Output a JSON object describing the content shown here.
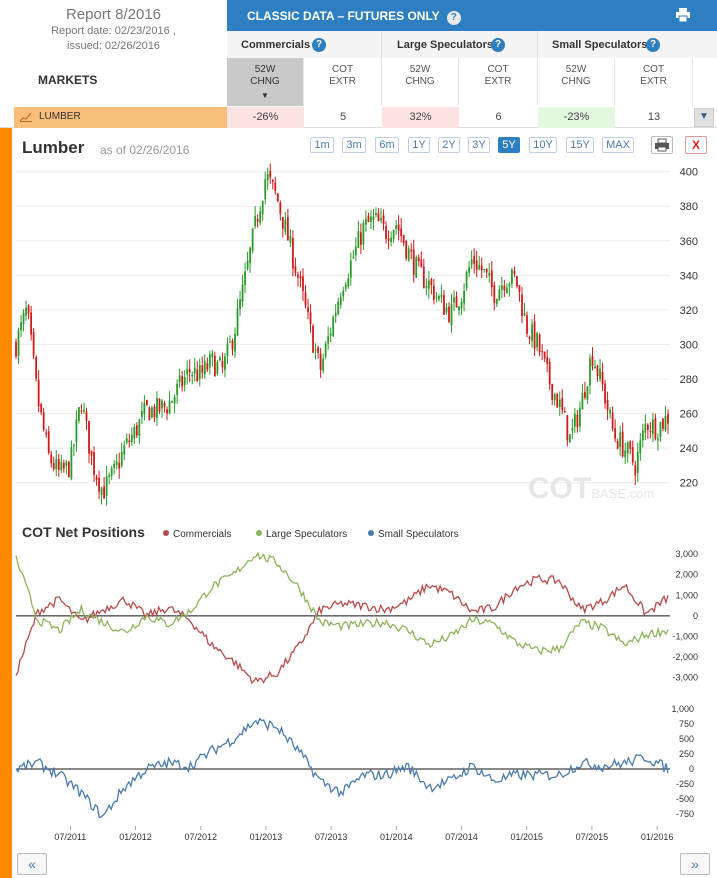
{
  "report": {
    "title": "Report 8/2016",
    "date_line": "Report date: 02/23/2016 ,",
    "issued_line": "issued: 02/26/2016",
    "markets_label": "MARKETS"
  },
  "header": {
    "title": "CLASSIC DATA – FUTURES ONLY",
    "help": "?",
    "groups": [
      {
        "label": "Commercials"
      },
      {
        "label": "Large Speculators"
      },
      {
        "label": "Small Speculators"
      }
    ],
    "subheads": [
      {
        "l1": "52W",
        "l2": "CHNG",
        "arrow": "▼"
      },
      {
        "l1": "COT",
        "l2": "EXTR"
      },
      {
        "l1": "52W",
        "l2": "CHNG"
      },
      {
        "l1": "COT",
        "l2": "EXTR"
      },
      {
        "l1": "52W",
        "l2": "CHNG"
      },
      {
        "l1": "COT",
        "l2": "EXTR"
      }
    ]
  },
  "row": {
    "market": "LUMBER",
    "cells": [
      "-26%",
      "5",
      "32%",
      "6",
      "-23%",
      "13"
    ],
    "cell_colors": [
      "#fde2e2",
      "#ffffff",
      "#fde2e2",
      "#ffffff",
      "#e4f7df",
      "#ffffff"
    ],
    "dropdown": "▼"
  },
  "chart": {
    "title": "Lumber",
    "asof": "as of 02/26/2016",
    "ranges": [
      "1m",
      "3m",
      "6m",
      "1Y",
      "2Y",
      "3Y",
      "5Y",
      "10Y",
      "15Y",
      "MAX"
    ],
    "active_range": "5Y",
    "close_label": "X",
    "watermark": "COTBASE.com"
  },
  "positions": {
    "title": "COT Net Positions",
    "legend": [
      {
        "name": "Commercials",
        "color": "#b94a4a"
      },
      {
        "name": "Large Speculators",
        "color": "#8db35c"
      },
      {
        "name": "Small Speculators",
        "color": "#4a7ab0"
      }
    ]
  },
  "nav": {
    "prev": "«",
    "next": "»"
  },
  "colors": {
    "accent": "#2e7fc1",
    "orange": "#ff8a00",
    "up": "#2a9a2a",
    "down": "#d11a1a"
  },
  "chart_data": [
    {
      "type": "candlestick",
      "title": "Lumber",
      "ylim": [
        210,
        405
      ],
      "yticks": [
        220,
        240,
        260,
        280,
        300,
        320,
        340,
        360,
        380,
        400
      ],
      "x_labels": [
        "07/2011",
        "01/2012",
        "07/2012",
        "01/2013",
        "07/2013",
        "01/2014",
        "07/2014",
        "01/2015",
        "07/2015",
        "01/2016"
      ],
      "x_range": [
        "2011-02",
        "2016-02"
      ],
      "price_path": [
        [
          "2011-02",
          300
        ],
        [
          "2011-03",
          320
        ],
        [
          "2011-04",
          268
        ],
        [
          "2011-05",
          235
        ],
        [
          "2011-06",
          225
        ],
        [
          "2011-07",
          230
        ],
        [
          "2011-08",
          268
        ],
        [
          "2011-09",
          232
        ],
        [
          "2011-10",
          215
        ],
        [
          "2011-11",
          225
        ],
        [
          "2011-12",
          240
        ],
        [
          "2012-01",
          250
        ],
        [
          "2012-02",
          262
        ],
        [
          "2012-03",
          262
        ],
        [
          "2012-04",
          265
        ],
        [
          "2012-05",
          275
        ],
        [
          "2012-06",
          285
        ],
        [
          "2012-07",
          282
        ],
        [
          "2012-08",
          290
        ],
        [
          "2012-09",
          285
        ],
        [
          "2012-10",
          305
        ],
        [
          "2012-11",
          335
        ],
        [
          "2012-12",
          368
        ],
        [
          "2013-01",
          398
        ],
        [
          "2013-02",
          385
        ],
        [
          "2013-03",
          362
        ],
        [
          "2013-04",
          338
        ],
        [
          "2013-05",
          310
        ],
        [
          "2013-06",
          285
        ],
        [
          "2013-07",
          310
        ],
        [
          "2013-08",
          335
        ],
        [
          "2013-09",
          350
        ],
        [
          "2013-10",
          368
        ],
        [
          "2013-11",
          372
        ],
        [
          "2013-12",
          365
        ],
        [
          "2014-01",
          370
        ],
        [
          "2014-02",
          355
        ],
        [
          "2014-03",
          342
        ],
        [
          "2014-04",
          335
        ],
        [
          "2014-05",
          325
        ],
        [
          "2014-06",
          318
        ],
        [
          "2014-07",
          330
        ],
        [
          "2014-08",
          350
        ],
        [
          "2014-09",
          342
        ],
        [
          "2014-10",
          330
        ],
        [
          "2014-11",
          338
        ],
        [
          "2014-12",
          338
        ],
        [
          "2015-01",
          310
        ],
        [
          "2015-02",
          300
        ],
        [
          "2015-03",
          280
        ],
        [
          "2015-04",
          265
        ],
        [
          "2015-05",
          245
        ],
        [
          "2015-06",
          265
        ],
        [
          "2015-07",
          295
        ],
        [
          "2015-08",
          275
        ],
        [
          "2015-09",
          248
        ],
        [
          "2015-10",
          240
        ],
        [
          "2015-11",
          230
        ],
        [
          "2015-12",
          255
        ],
        [
          "2016-01",
          252
        ],
        [
          "2016-02",
          258
        ]
      ]
    },
    {
      "type": "line",
      "title": "COT Net Positions",
      "ylim": [
        -3500,
        3200
      ],
      "yticks": [
        -3000,
        -2000,
        -1000,
        0,
        1000,
        2000,
        3000
      ],
      "series": [
        {
          "name": "Commercials",
          "values": [
            [
              "2011-02",
              -2800
            ],
            [
              "2011-04",
              200
            ],
            [
              "2011-06",
              800
            ],
            [
              "2011-08",
              -300
            ],
            [
              "2011-10",
              300
            ],
            [
              "2011-12",
              800
            ],
            [
              "2012-02",
              0
            ],
            [
              "2012-04",
              400
            ],
            [
              "2012-06",
              -200
            ],
            [
              "2012-08",
              -1400
            ],
            [
              "2012-10",
              -2200
            ],
            [
              "2012-12",
              -3200
            ],
            [
              "2013-02",
              -2800
            ],
            [
              "2013-04",
              -1500
            ],
            [
              "2013-06",
              300
            ],
            [
              "2013-08",
              600
            ],
            [
              "2013-10",
              500
            ],
            [
              "2013-12",
              300
            ],
            [
              "2014-02",
              700
            ],
            [
              "2014-04",
              1500
            ],
            [
              "2014-06",
              1100
            ],
            [
              "2014-08",
              200
            ],
            [
              "2014-10",
              400
            ],
            [
              "2014-12",
              1400
            ],
            [
              "2015-02",
              1800
            ],
            [
              "2015-04",
              1700
            ],
            [
              "2015-06",
              300
            ],
            [
              "2015-08",
              700
            ],
            [
              "2015-10",
              1500
            ],
            [
              "2015-12",
              100
            ],
            [
              "2016-02",
              900
            ]
          ]
        },
        {
          "name": "Large Speculators",
          "values": [
            [
              "2011-02",
              2800
            ],
            [
              "2011-04",
              -200
            ],
            [
              "2011-06",
              -700
            ],
            [
              "2011-08",
              300
            ],
            [
              "2011-10",
              -300
            ],
            [
              "2011-12",
              -800
            ],
            [
              "2012-02",
              0
            ],
            [
              "2012-04",
              -400
            ],
            [
              "2012-06",
              200
            ],
            [
              "2012-08",
              1400
            ],
            [
              "2012-10",
              2000
            ],
            [
              "2012-12",
              3000
            ],
            [
              "2013-02",
              2600
            ],
            [
              "2013-04",
              1400
            ],
            [
              "2013-06",
              -300
            ],
            [
              "2013-08",
              -500
            ],
            [
              "2013-10",
              -400
            ],
            [
              "2013-12",
              -300
            ],
            [
              "2014-02",
              -700
            ],
            [
              "2014-04",
              -1400
            ],
            [
              "2014-06",
              -1000
            ],
            [
              "2014-08",
              -200
            ],
            [
              "2014-10",
              -400
            ],
            [
              "2014-12",
              -1300
            ],
            [
              "2015-02",
              -1700
            ],
            [
              "2015-04",
              -1600
            ],
            [
              "2015-06",
              -300
            ],
            [
              "2015-08",
              -600
            ],
            [
              "2015-10",
              -1400
            ],
            [
              "2015-12",
              -900
            ],
            [
              "2016-02",
              -700
            ]
          ]
        }
      ]
    },
    {
      "type": "line",
      "series_name": "Small Speculators",
      "ylim": [
        -950,
        1150
      ],
      "yticks": [
        -750,
        -500,
        -250,
        0,
        250,
        500,
        750,
        1000
      ],
      "series": [
        {
          "name": "Small Speculators",
          "values": [
            [
              "2011-02",
              0
            ],
            [
              "2011-04",
              100
            ],
            [
              "2011-06",
              -100
            ],
            [
              "2011-08",
              -400
            ],
            [
              "2011-10",
              -800
            ],
            [
              "2011-12",
              -300
            ],
            [
              "2012-02",
              0
            ],
            [
              "2012-04",
              100
            ],
            [
              "2012-06",
              50
            ],
            [
              "2012-08",
              300
            ],
            [
              "2012-10",
              500
            ],
            [
              "2012-12",
              800
            ],
            [
              "2013-02",
              700
            ],
            [
              "2013-04",
              300
            ],
            [
              "2013-06",
              -200
            ],
            [
              "2013-08",
              -400
            ],
            [
              "2013-10",
              -100
            ],
            [
              "2013-12",
              -100
            ],
            [
              "2014-02",
              50
            ],
            [
              "2014-04",
              -300
            ],
            [
              "2014-06",
              -200
            ],
            [
              "2014-08",
              50
            ],
            [
              "2014-10",
              -200
            ],
            [
              "2014-12",
              -100
            ],
            [
              "2015-02",
              -100
            ],
            [
              "2015-04",
              -100
            ],
            [
              "2015-06",
              100
            ],
            [
              "2015-08",
              50
            ],
            [
              "2015-10",
              100
            ],
            [
              "2015-12",
              200
            ],
            [
              "2016-02",
              0
            ]
          ]
        }
      ]
    }
  ]
}
